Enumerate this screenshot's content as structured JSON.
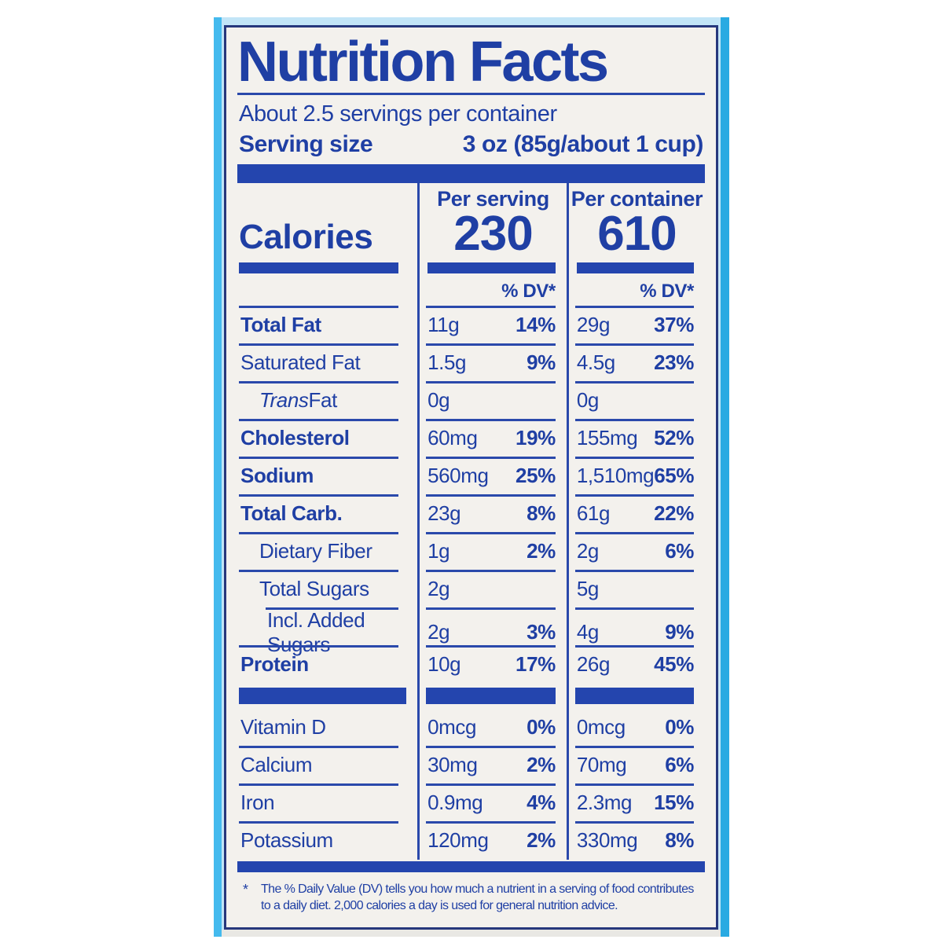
{
  "label": {
    "title": "Nutrition Facts",
    "servings_per_container": "About 2.5 servings per container",
    "serving_size_label": "Serving size",
    "serving_size_value": "3 oz (85g/about 1 cup)",
    "calories": {
      "word": "Calories",
      "per_serving": {
        "header": "Per serving",
        "value": "230",
        "dv_header": "% DV*"
      },
      "per_container": {
        "header": "Per container",
        "value": "610",
        "dv_header": "% DV*"
      }
    },
    "nutrients": [
      {
        "name": "Total Fat",
        "serving_amount": "11g",
        "serving_dv": "14%",
        "container_amount": "29g",
        "container_dv": "37%"
      },
      {
        "name": "Saturated Fat",
        "serving_amount": "1.5g",
        "serving_dv": "9%",
        "container_amount": "4.5g",
        "container_dv": "23%"
      },
      {
        "name_italic": "Trans",
        "name": " Fat",
        "serving_amount": "0g",
        "serving_dv": "",
        "container_amount": "0g",
        "container_dv": ""
      },
      {
        "name": "Cholesterol",
        "serving_amount": "60mg",
        "serving_dv": "19%",
        "container_amount": "155mg",
        "container_dv": "52%"
      },
      {
        "name": "Sodium",
        "serving_amount": "560mg",
        "serving_dv": "25%",
        "container_amount": "1,510mg",
        "container_dv": "65%"
      },
      {
        "name": "Total Carb.",
        "serving_amount": "23g",
        "serving_dv": "8%",
        "container_amount": "61g",
        "container_dv": "22%"
      },
      {
        "name": "Dietary Fiber",
        "serving_amount": "1g",
        "serving_dv": "2%",
        "container_amount": "2g",
        "container_dv": "6%"
      },
      {
        "name": "Total Sugars",
        "serving_amount": "2g",
        "serving_dv": "",
        "container_amount": "5g",
        "container_dv": ""
      },
      {
        "name": "Incl. Added Sugars",
        "serving_amount": "2g",
        "serving_dv": "3%",
        "container_amount": "4g",
        "container_dv": "9%"
      },
      {
        "name": "Protein",
        "serving_amount": "10g",
        "serving_dv": "17%",
        "container_amount": "26g",
        "container_dv": "45%"
      }
    ],
    "vitamins": [
      {
        "name": "Vitamin D",
        "serving_amount": "0mcg",
        "serving_dv": "0%",
        "container_amount": "0mcg",
        "container_dv": "0%"
      },
      {
        "name": "Calcium",
        "serving_amount": "30mg",
        "serving_dv": "2%",
        "container_amount": "70mg",
        "container_dv": "6%"
      },
      {
        "name": "Iron",
        "serving_amount": "0.9mg",
        "serving_dv": "4%",
        "container_amount": "2.3mg",
        "container_dv": "15%"
      },
      {
        "name": "Potassium",
        "serving_amount": "120mg",
        "serving_dv": "2%",
        "container_amount": "330mg",
        "container_dv": "8%"
      }
    ],
    "footnote_marker": "*",
    "footnote": "The % Daily Value (DV) tells you how much a nutrient in a serving of food contributes to a daily diet. 2,000 calories a day is used for general nutrition advice.",
    "colors": {
      "text_blue": "#1f3fa4",
      "bar_blue": "#2445ae",
      "label_background": "#f3f1ed",
      "package_light_blue": "#c2e5f7",
      "package_edge_cyan": "#29aae2"
    }
  }
}
